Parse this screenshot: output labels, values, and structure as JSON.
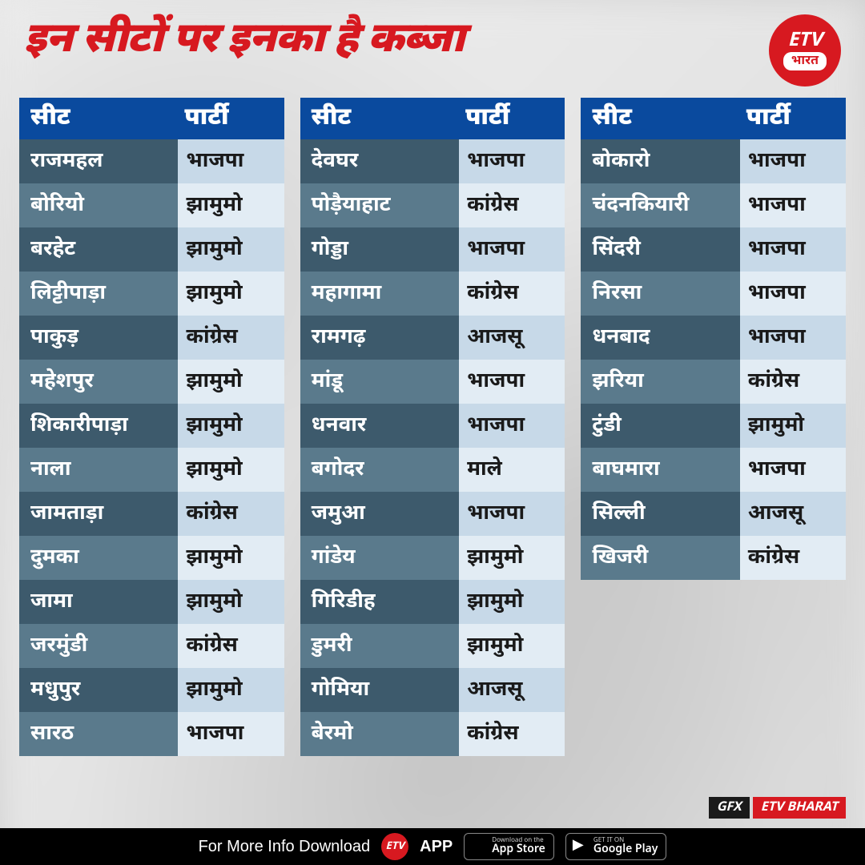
{
  "title": "इन सीटों पर इनका है कब्जा",
  "logo": {
    "top": "ETV",
    "bottom": "भारत"
  },
  "columns": {
    "seat": "सीट",
    "party": "पार्टी"
  },
  "colors": {
    "title": "#d71920",
    "header_bg": "#0a4a9e",
    "row_dark_seat": "#3d5a6c",
    "row_dark_party": "#c7d9e8",
    "row_light_seat": "#5a7a8c",
    "row_light_party": "#e2ecf4",
    "seat_text": "#ffffff",
    "party_text": "#1a1a1a",
    "brand_red": "#d71920",
    "footer_bg": "#000000"
  },
  "tables": [
    [
      {
        "seat": "राजमहल",
        "party": "भाजपा"
      },
      {
        "seat": "बोरियो",
        "party": "झामुमो"
      },
      {
        "seat": "बरहेट",
        "party": "झामुमो"
      },
      {
        "seat": "लिट्टीपाड़ा",
        "party": "झामुमो"
      },
      {
        "seat": "पाकुड़",
        "party": "कांग्रेस"
      },
      {
        "seat": "महेशपुर",
        "party": "झामुमो"
      },
      {
        "seat": "शिकारीपाड़ा",
        "party": "झामुमो"
      },
      {
        "seat": "नाला",
        "party": "झामुमो"
      },
      {
        "seat": "जामताड़ा",
        "party": "कांग्रेस"
      },
      {
        "seat": "दुमका",
        "party": "झामुमो"
      },
      {
        "seat": "जामा",
        "party": "झामुमो"
      },
      {
        "seat": "जरमुंडी",
        "party": "कांग्रेस"
      },
      {
        "seat": "मधुपुर",
        "party": "झामुमो"
      },
      {
        "seat": "सारठ",
        "party": "भाजपा"
      }
    ],
    [
      {
        "seat": "देवघर",
        "party": "भाजपा"
      },
      {
        "seat": "पोड़ैयाहाट",
        "party": "कांग्रेस"
      },
      {
        "seat": "गोड्डा",
        "party": "भाजपा"
      },
      {
        "seat": "महागामा",
        "party": "कांग्रेस"
      },
      {
        "seat": "रामगढ़",
        "party": "आजसू"
      },
      {
        "seat": "मांडू",
        "party": "भाजपा"
      },
      {
        "seat": "धनवार",
        "party": "भाजपा"
      },
      {
        "seat": "बगोदर",
        "party": "माले"
      },
      {
        "seat": "जमुआ",
        "party": "भाजपा"
      },
      {
        "seat": "गांडेय",
        "party": "झामुमो"
      },
      {
        "seat": "गिरिडीह",
        "party": "झामुमो"
      },
      {
        "seat": "डुमरी",
        "party": "झामुमो"
      },
      {
        "seat": "गोमिया",
        "party": "आजसू"
      },
      {
        "seat": "बेरमो",
        "party": "कांग्रेस"
      }
    ],
    [
      {
        "seat": "बोकारो",
        "party": "भाजपा"
      },
      {
        "seat": "चंदनकियारी",
        "party": "भाजपा"
      },
      {
        "seat": "सिंदरी",
        "party": "भाजपा"
      },
      {
        "seat": "निरसा",
        "party": "भाजपा"
      },
      {
        "seat": "धनबाद",
        "party": "भाजपा"
      },
      {
        "seat": "झरिया",
        "party": "कांग्रेस"
      },
      {
        "seat": "टुंडी",
        "party": "झामुमो"
      },
      {
        "seat": "बाघमारा",
        "party": "भाजपा"
      },
      {
        "seat": "सिल्ली",
        "party": "आजसू"
      },
      {
        "seat": "खिजरी",
        "party": "कांग्रेस"
      }
    ]
  ],
  "gfx": {
    "left": "GFX",
    "right": "ETV BHARAT"
  },
  "footer": {
    "text": "For More Info Download",
    "app": "APP",
    "app_logo": "ETV",
    "stores": [
      {
        "small": "Download on the",
        "big": "App Store",
        "icon": ""
      },
      {
        "small": "GET IT ON",
        "big": "Google Play",
        "icon": "▶"
      }
    ]
  }
}
